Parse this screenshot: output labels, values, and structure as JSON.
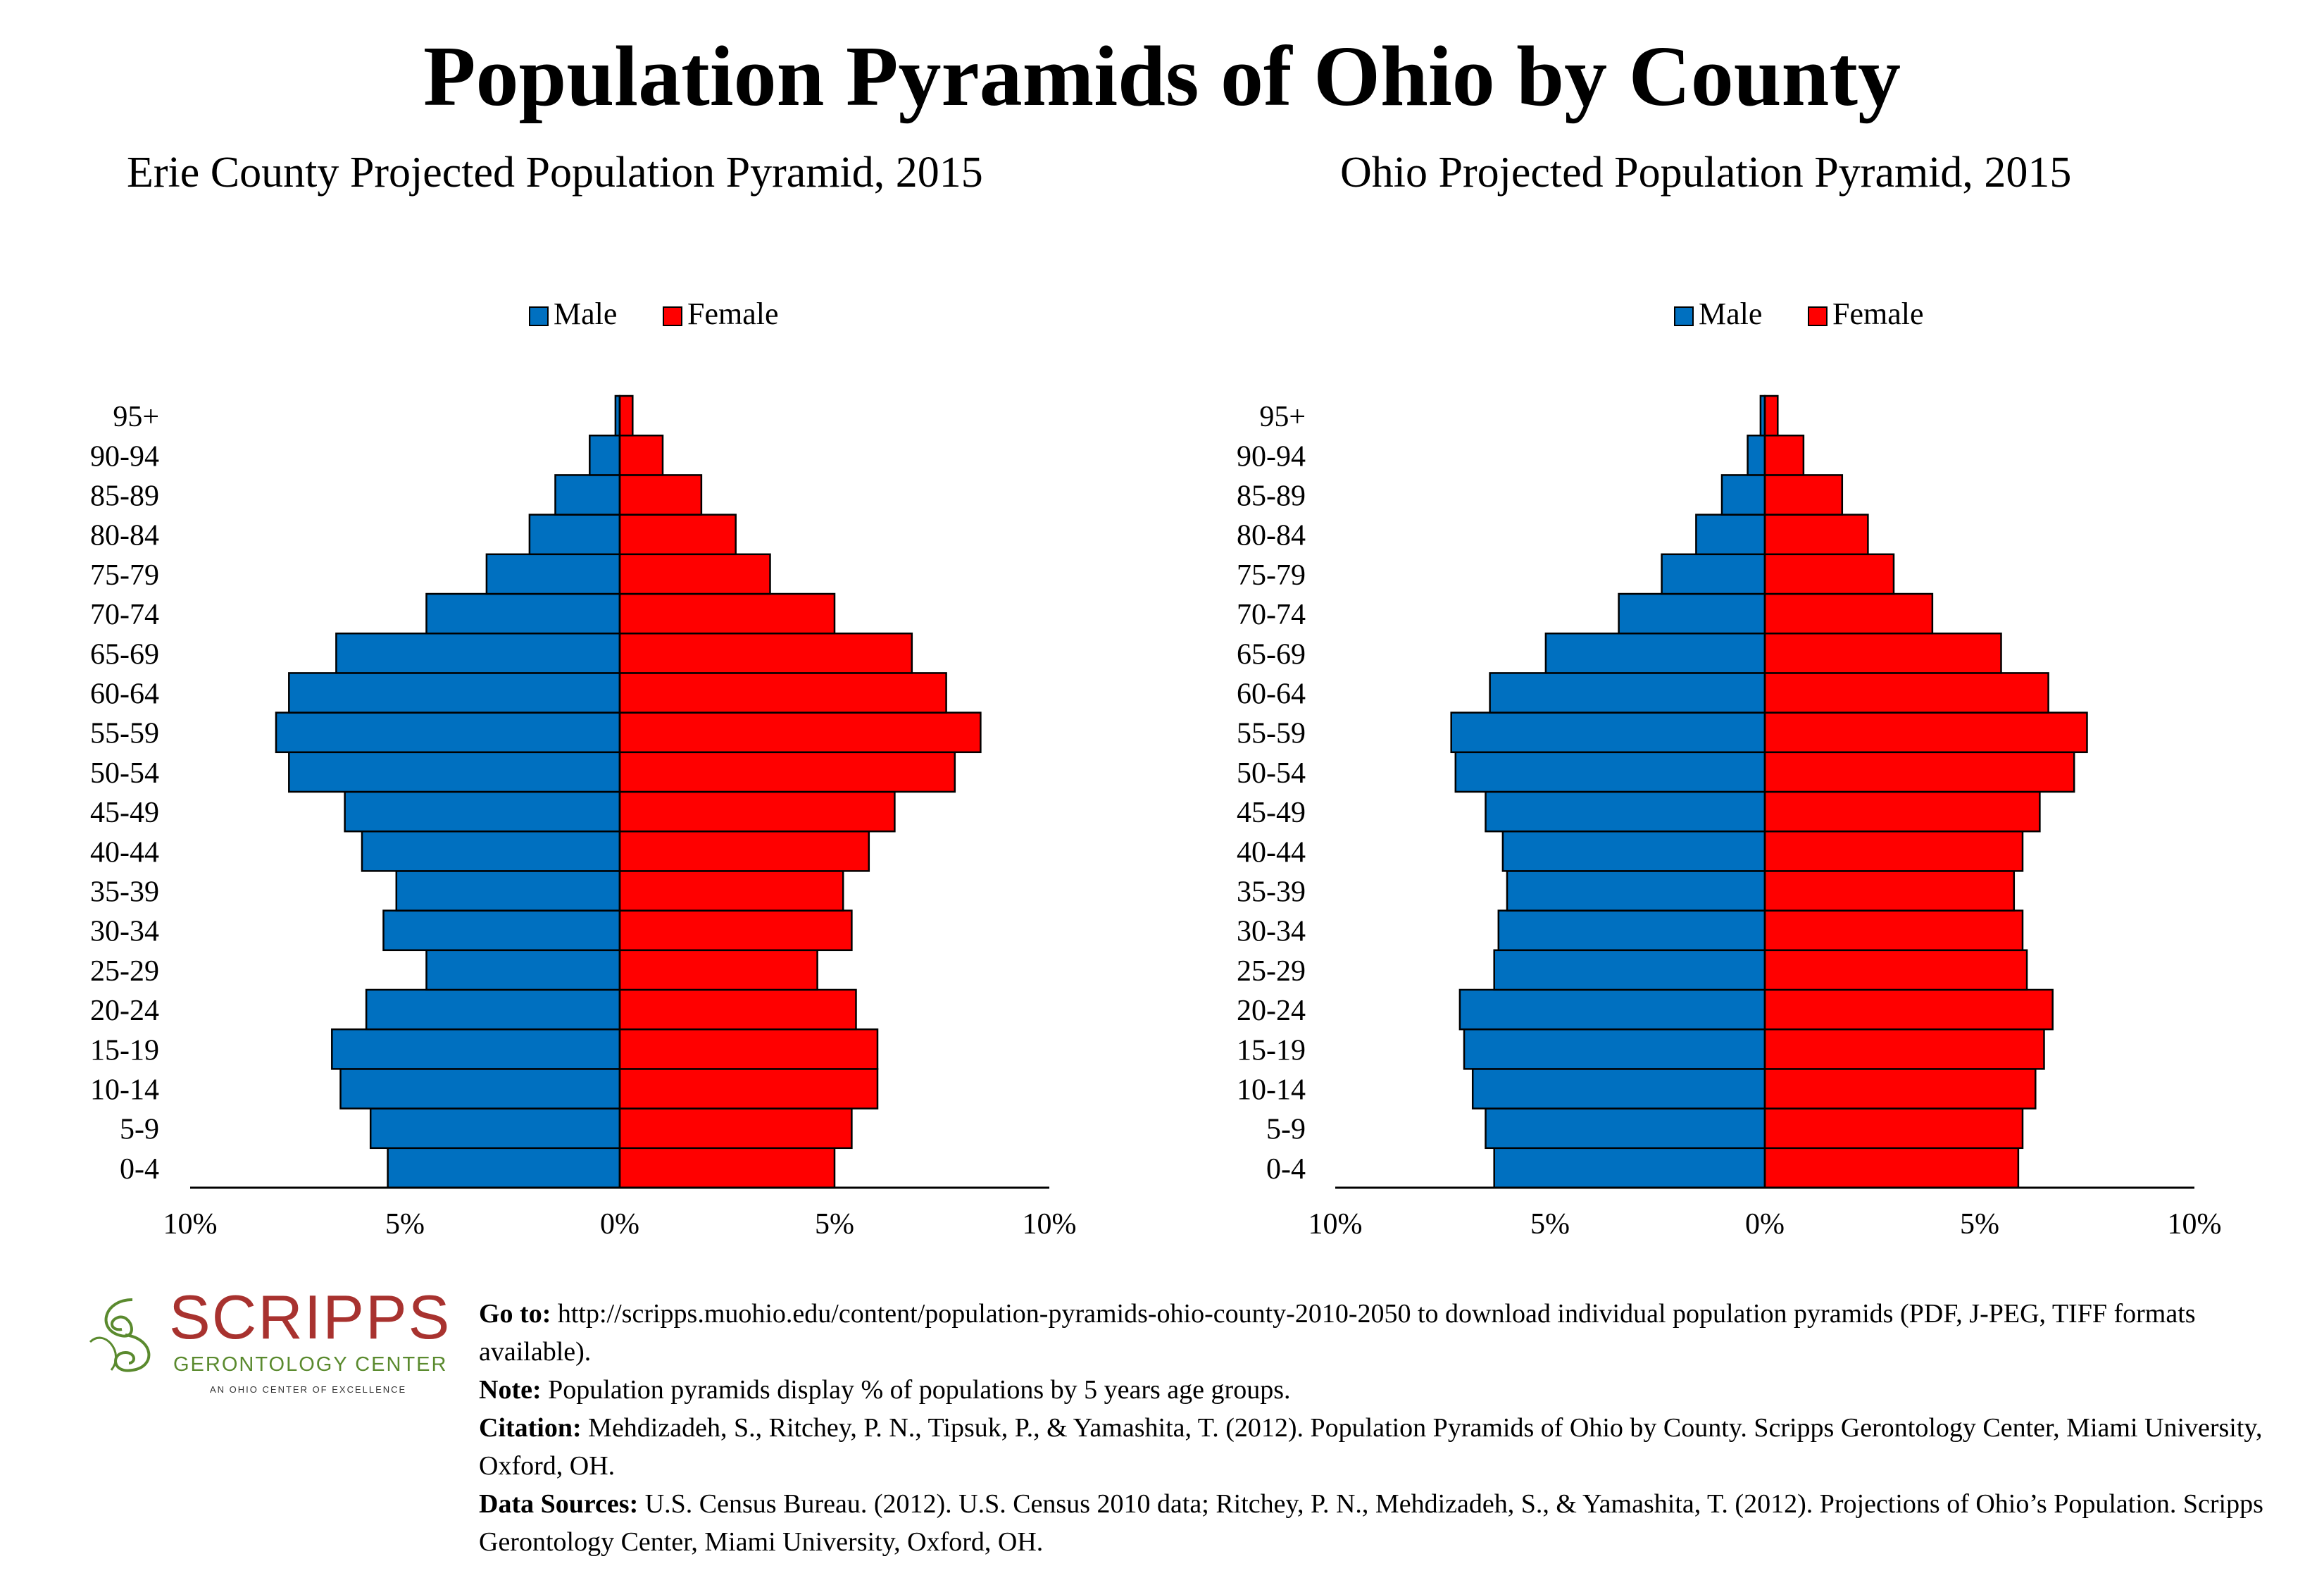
{
  "title": "Population Pyramids of Ohio by County",
  "chart_data": [
    {
      "type": "bar",
      "orientation": "horizontal-pyramid",
      "title": "Erie County Projected Population Pyramid, 2015",
      "categories": [
        "0-4",
        "5-9",
        "10-14",
        "15-19",
        "20-24",
        "25-29",
        "30-34",
        "35-39",
        "40-44",
        "45-49",
        "50-54",
        "55-59",
        "60-64",
        "65-69",
        "70-74",
        "75-79",
        "80-84",
        "85-89",
        "90-94",
        "95+"
      ],
      "series": [
        {
          "name": "Male",
          "color": "#0070c0",
          "values": [
            5.4,
            5.8,
            6.5,
            6.7,
            5.9,
            4.5,
            5.5,
            5.2,
            6.0,
            6.4,
            7.7,
            8.0,
            7.7,
            6.6,
            4.5,
            3.1,
            2.1,
            1.5,
            0.7,
            0.1
          ]
        },
        {
          "name": "Female",
          "color": "#ff0000",
          "values": [
            5.0,
            5.4,
            6.0,
            6.0,
            5.5,
            4.6,
            5.4,
            5.2,
            5.8,
            6.4,
            7.8,
            8.4,
            7.6,
            6.8,
            5.0,
            3.5,
            2.7,
            1.9,
            1.0,
            0.3
          ]
        }
      ],
      "xlim": [
        -10,
        10
      ],
      "xticks": [
        "10%",
        "5%",
        "0%",
        "5%",
        "10%"
      ],
      "legend": "top-center"
    },
    {
      "type": "bar",
      "orientation": "horizontal-pyramid",
      "title": "Ohio Projected Population Pyramid, 2015",
      "categories": [
        "0-4",
        "5-9",
        "10-14",
        "15-19",
        "20-24",
        "25-29",
        "30-34",
        "35-39",
        "40-44",
        "45-49",
        "50-54",
        "55-59",
        "60-64",
        "65-69",
        "70-74",
        "75-79",
        "80-84",
        "85-89",
        "90-94",
        "95+"
      ],
      "series": [
        {
          "name": "Male",
          "color": "#0070c0",
          "values": [
            6.3,
            6.5,
            6.8,
            7.0,
            7.1,
            6.3,
            6.2,
            6.0,
            6.1,
            6.5,
            7.2,
            7.3,
            6.4,
            5.1,
            3.4,
            2.4,
            1.6,
            1.0,
            0.4,
            0.1
          ]
        },
        {
          "name": "Female",
          "color": "#ff0000",
          "values": [
            5.9,
            6.0,
            6.3,
            6.5,
            6.7,
            6.1,
            6.0,
            5.8,
            6.0,
            6.4,
            7.2,
            7.5,
            6.6,
            5.5,
            3.9,
            3.0,
            2.4,
            1.8,
            0.9,
            0.3
          ]
        }
      ],
      "xlim": [
        -10,
        10
      ],
      "xticks": [
        "10%",
        "5%",
        "0%",
        "5%",
        "10%"
      ],
      "legend": "top-center"
    }
  ],
  "logo": {
    "word": "SCRIPPS",
    "sub": "GERONTOLOGY CENTER",
    "tag": "AN OHIO CENTER OF EXCELLENCE",
    "word_color": "#a8322f",
    "sub_color": "#5a8a2e"
  },
  "footer": {
    "goto_label": "Go to:",
    "goto_text": " http://scripps.muohio.edu/content/population-pyramids-ohio-county-2010-2050 to download individual population pyramids (PDF, J-PEG, TIFF formats available).",
    "note_label": "Note:",
    "note_text": " Population pyramids display % of populations by 5 years age groups.",
    "citation_label": "Citation:",
    "citation_text": " Mehdizadeh, S., Ritchey, P. N., Tipsuk, P., & Yamashita, T. (2012). Population Pyramids of Ohio by County. Scripps Gerontology Center, Miami University, Oxford, OH.",
    "sources_label": "Data Sources:",
    "sources_text": " U.S. Census Bureau. (2012). U.S. Census 2010 data; Ritchey, P. N., Mehdizadeh, S., & Yamashita, T. (2012). Projections of Ohio’s Population. Scripps Gerontology Center, Miami University, Oxford, OH."
  }
}
